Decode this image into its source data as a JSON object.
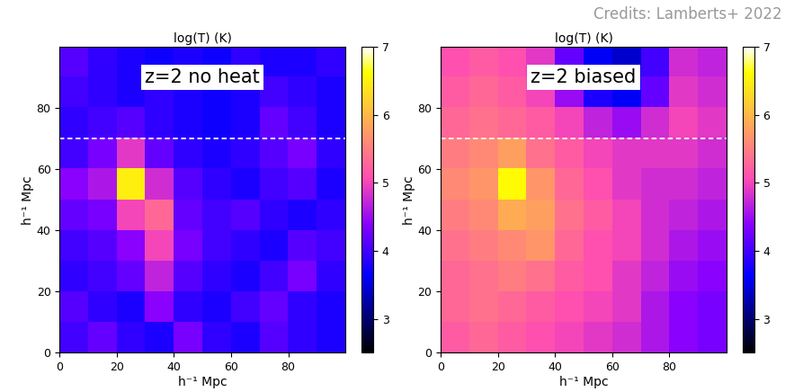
{
  "credits": "Credits: Lamberts+ 2022",
  "chart_data": [
    {
      "type": "heatmap",
      "title": "log(T) (K)",
      "annotation": "z=2 no heat",
      "xlabel": "h⁻¹ Mpc",
      "ylabel": "h⁻¹ Mpc",
      "xlim": [
        0,
        100
      ],
      "ylim": [
        0,
        100
      ],
      "xticks": [
        0,
        20,
        40,
        60,
        80
      ],
      "yticks": [
        0,
        20,
        40,
        60,
        80
      ],
      "hline": 70,
      "colorbar_range": [
        2.5,
        7
      ],
      "colorbar_ticks": [
        3,
        4,
        5,
        6,
        7
      ],
      "cells": [
        [
          4.0,
          4.2,
          3.9,
          3.8,
          4.3,
          3.9,
          3.8,
          4.1,
          3.9,
          3.8
        ],
        [
          4.1,
          3.9,
          3.8,
          4.4,
          3.9,
          3.8,
          4.0,
          4.2,
          3.9,
          3.8
        ],
        [
          3.9,
          4.0,
          4.2,
          4.7,
          4.1,
          3.9,
          3.8,
          4.0,
          4.3,
          3.9
        ],
        [
          4.0,
          4.1,
          4.4,
          5.0,
          4.3,
          4.0,
          3.9,
          3.8,
          4.1,
          4.0
        ],
        [
          4.2,
          4.3,
          5.0,
          5.3,
          4.2,
          4.0,
          4.1,
          3.9,
          3.8,
          3.9
        ],
        [
          4.4,
          4.6,
          6.5,
          4.8,
          4.1,
          3.9,
          3.8,
          4.0,
          4.1,
          3.8
        ],
        [
          4.0,
          4.3,
          4.9,
          4.2,
          3.9,
          3.8,
          3.9,
          4.1,
          4.3,
          3.9
        ],
        [
          3.9,
          4.0,
          4.1,
          3.9,
          3.8,
          3.7,
          3.8,
          4.2,
          4.0,
          3.8
        ],
        [
          4.0,
          3.9,
          3.8,
          3.9,
          3.8,
          3.7,
          3.8,
          4.0,
          3.9,
          3.8
        ],
        [
          4.1,
          3.9,
          3.8,
          3.7,
          3.8,
          3.7,
          3.9,
          3.8,
          3.8,
          3.9
        ]
      ]
    },
    {
      "type": "heatmap",
      "title": "log(T) (K)",
      "annotation": "z=2 biased",
      "xlabel": "h⁻¹ Mpc",
      "ylabel": "h⁻¹ Mpc",
      "xlim": [
        0,
        100
      ],
      "ylim": [
        0,
        100
      ],
      "xticks": [
        0,
        20,
        40,
        60,
        80
      ],
      "yticks": [
        0,
        20,
        40,
        60,
        80
      ],
      "hline": 70,
      "colorbar_range": [
        2.5,
        7
      ],
      "colorbar_ticks": [
        3,
        4,
        5,
        6,
        7
      ],
      "cells": [
        [
          5.2,
          5.3,
          5.2,
          5.1,
          5.0,
          4.9,
          4.8,
          4.6,
          4.4,
          4.3
        ],
        [
          5.3,
          5.4,
          5.3,
          5.2,
          5.1,
          5.0,
          4.9,
          4.6,
          4.4,
          4.3
        ],
        [
          5.3,
          5.4,
          5.5,
          5.4,
          5.2,
          5.1,
          4.9,
          4.7,
          4.5,
          4.4
        ],
        [
          5.4,
          5.5,
          5.6,
          5.7,
          5.3,
          5.1,
          5.0,
          4.8,
          4.6,
          4.5
        ],
        [
          5.5,
          5.6,
          5.9,
          5.8,
          5.4,
          5.2,
          5.0,
          4.8,
          4.7,
          4.6
        ],
        [
          5.6,
          5.7,
          6.6,
          5.7,
          5.3,
          5.1,
          4.9,
          4.8,
          4.8,
          4.7
        ],
        [
          5.5,
          5.6,
          5.8,
          5.4,
          5.2,
          5.0,
          4.9,
          4.9,
          4.9,
          4.8
        ],
        [
          5.3,
          5.4,
          5.3,
          5.2,
          5.0,
          4.7,
          4.5,
          4.8,
          5.0,
          4.9
        ],
        [
          5.2,
          5.3,
          5.2,
          5.0,
          4.5,
          3.8,
          3.6,
          4.2,
          4.9,
          4.8
        ],
        [
          5.1,
          5.2,
          5.1,
          4.9,
          4.2,
          3.6,
          3.4,
          4.0,
          4.8,
          4.7
        ]
      ]
    }
  ]
}
